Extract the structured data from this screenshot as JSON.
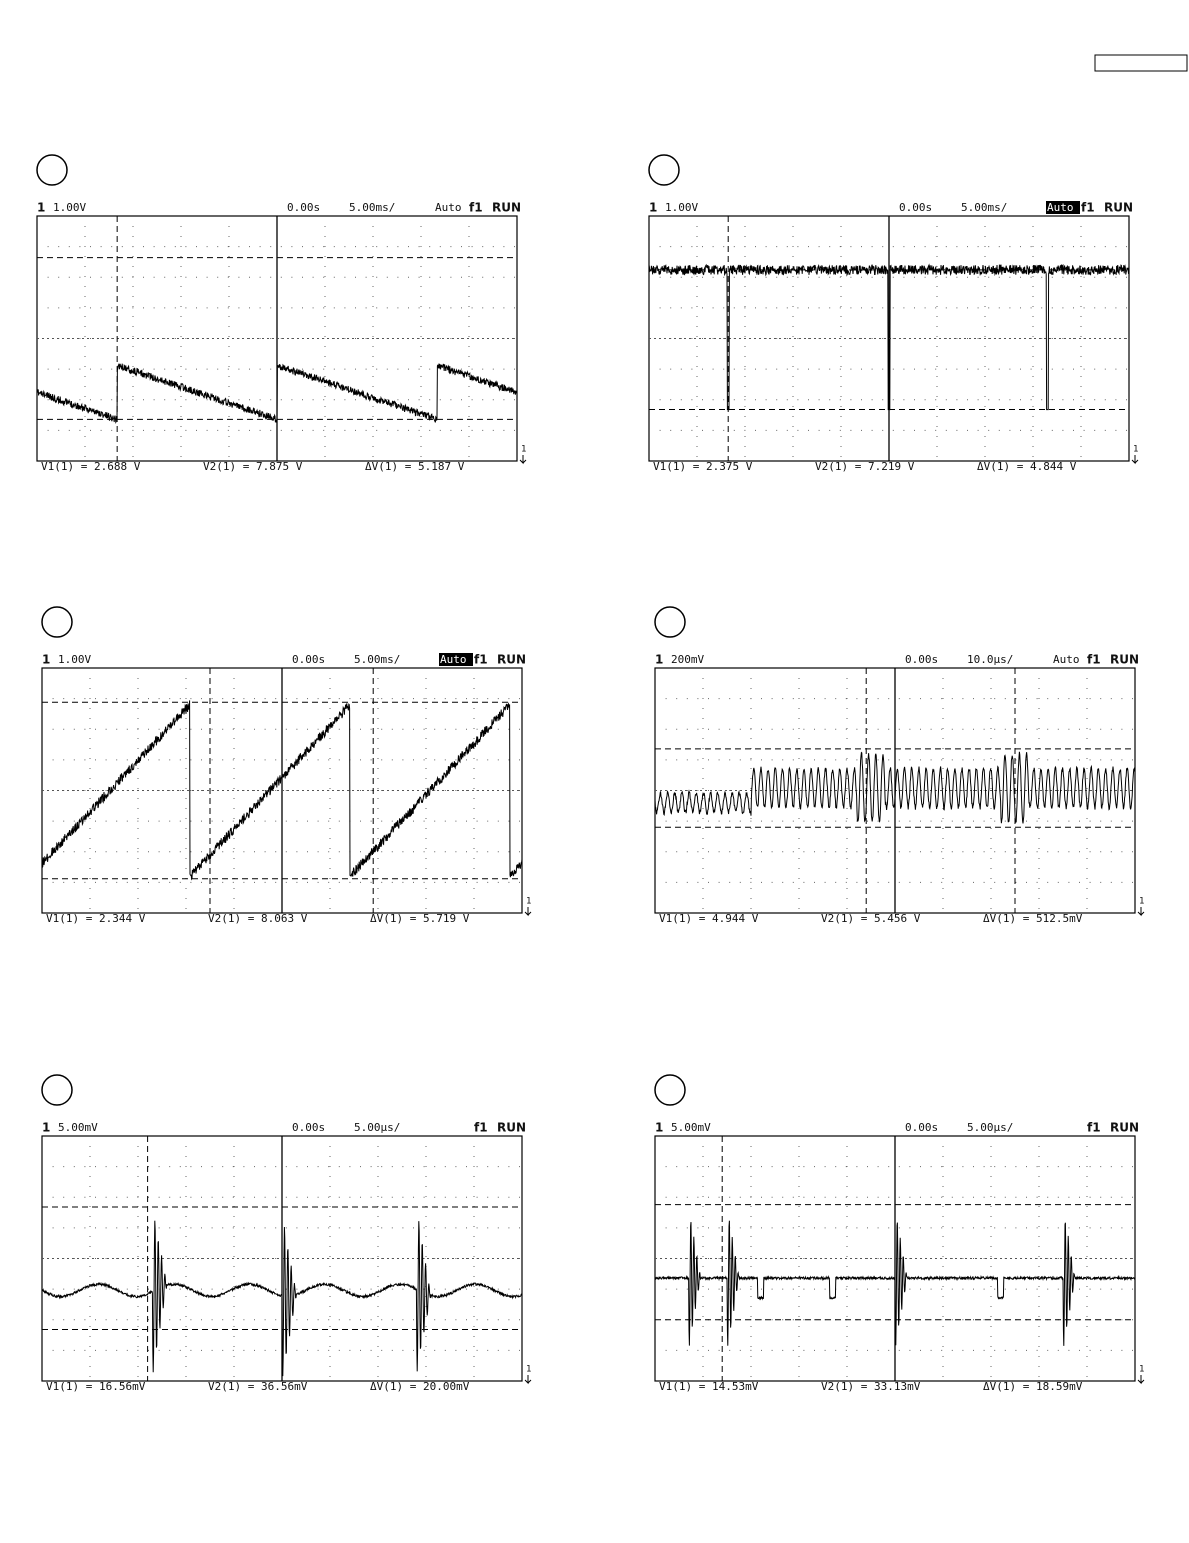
{
  "panels": [
    {
      "channel": "1",
      "scale": "1.00V",
      "time": "0.00s",
      "timebase": "5.00ms/",
      "mode": "Auto",
      "mode_inverted": false,
      "trigger": "f1",
      "status": "RUN",
      "marker": "1",
      "readouts": [
        "V1(1) = 2.688 V",
        "V2(1) = 7.875 V",
        "ΔV(1) = 5.187 V"
      ]
    },
    {
      "channel": "1",
      "scale": "1.00V",
      "time": "0.00s",
      "timebase": "5.00ms/",
      "mode": "Auto",
      "mode_inverted": true,
      "trigger": "f1",
      "status": "RUN",
      "marker": "1",
      "readouts": [
        "V1(1) = 2.375 V",
        "V2(1) = 7.219 V",
        "ΔV(1) = 4.844 V"
      ]
    },
    {
      "channel": "1",
      "scale": "1.00V",
      "time": "0.00s",
      "timebase": "5.00ms/",
      "mode": "Auto",
      "mode_inverted": true,
      "trigger": "f1",
      "status": "RUN",
      "marker": "1",
      "readouts": [
        "V1(1) = 2.344 V",
        "V2(1) = 8.063 V",
        "ΔV(1) = 5.719 V"
      ]
    },
    {
      "channel": "1",
      "scale": "200mV",
      "time": "0.00s",
      "timebase": "10.0µs/",
      "mode": "Auto",
      "mode_inverted": false,
      "trigger": "f1",
      "status": "RUN",
      "marker": "1",
      "readouts": [
        "V1(1) = 4.944 V",
        "V2(1) = 5.456 V",
        "ΔV(1) = 512.5mV"
      ]
    },
    {
      "channel": "1",
      "scale": "5.00mV",
      "time": "0.00s",
      "timebase": "5.00µs/",
      "trigger": "f1",
      "status": "RUN",
      "marker": "1",
      "readouts": [
        "V1(1) = 16.56mV",
        "V2(1) = 36.56mV",
        "ΔV(1) = 20.00mV"
      ]
    },
    {
      "channel": "1",
      "scale": "5.00mV",
      "time": "0.00s",
      "timebase": "5.00µs/",
      "trigger": "f1",
      "status": "RUN",
      "marker": "1",
      "readouts": [
        "V1(1) = 14.53mV",
        "V2(1) = 33.13mV",
        "ΔV(1) = 18.59mV"
      ]
    }
  ]
}
